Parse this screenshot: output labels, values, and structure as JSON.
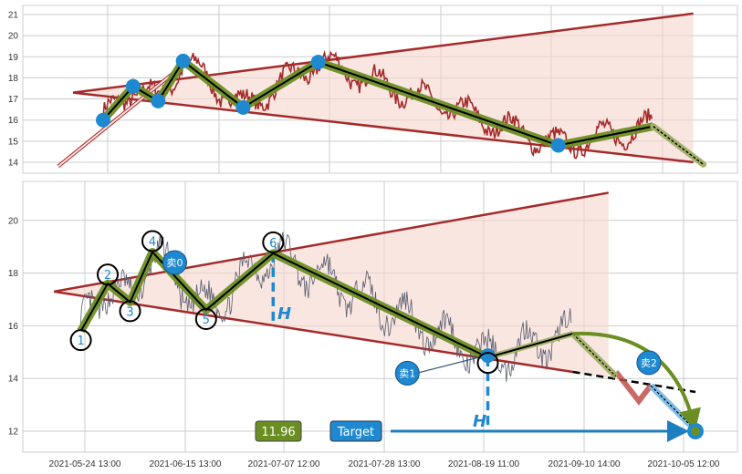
{
  "chart_data": [
    {
      "type": "line",
      "panel": "top",
      "ylim": [
        13.5,
        21.4
      ],
      "yticks": [
        "14",
        "15",
        "16",
        "17",
        "18",
        "19",
        "20",
        "21"
      ],
      "grid": true,
      "colors": {
        "price": "#a52a2a",
        "triangle": "#a52a2a",
        "fill": "#f5d5cc",
        "wave": "#6b8e23",
        "marker": "#1e88d0"
      },
      "triangle": {
        "apex": [
          "2021-05-17",
          17.3
        ],
        "upper_end": [
          "2021-09-18",
          21.05
        ],
        "lower_end": [
          "2021-09-18",
          14.0
        ]
      },
      "wave_points": [
        [
          "2021-05-23",
          16.0
        ],
        [
          "2021-05-29",
          17.6
        ],
        [
          "2021-06-03",
          16.9
        ],
        [
          "2021-06-08",
          18.8
        ],
        [
          "2021-06-20",
          16.6
        ],
        [
          "2021-07-05",
          18.75
        ],
        [
          "2021-08-22",
          14.8
        ],
        [
          "2021-09-10",
          15.7
        ],
        [
          "2021-09-20",
          13.9
        ]
      ],
      "trend_arrow": [
        [
          "2021-05-14",
          13.8
        ],
        [
          "2021-06-09",
          18.8
        ]
      ]
    },
    {
      "type": "line",
      "panel": "bottom",
      "ylim": [
        11.2,
        21.4
      ],
      "yticks": [
        "12",
        "14",
        "16",
        "18",
        "20"
      ],
      "xticks": [
        "2021-05-24 13:00",
        "2021-06-15 13:00",
        "2021-07-07 12:00",
        "2021-07-28 13:00",
        "2021-08-19 11:00",
        "2021-09-10 14:00",
        "2021-10-05 12:00"
      ],
      "grid": true,
      "colors": {
        "price": "#555a6e",
        "triangle": "#a52a2a",
        "fill": "#f5d5cc",
        "wave": "#6b8e23",
        "marker": "#1e88d0"
      },
      "triangle": {
        "apex": [
          "2021-05-17",
          17.3
        ],
        "upper_end": [
          "2021-09-18",
          21.05
        ],
        "lower_end": [
          "2021-09-10",
          14.25
        ]
      },
      "wave_points": [
        [
          "2021-05-23",
          15.8
        ],
        [
          "2021-05-29",
          17.6
        ],
        [
          "2021-06-03",
          16.9
        ],
        [
          "2021-06-08",
          18.8
        ],
        [
          "2021-06-20",
          16.6
        ],
        [
          "2021-07-05",
          18.75
        ],
        [
          "2021-08-22",
          14.8
        ],
        [
          "2021-09-10",
          15.7
        ]
      ],
      "wave_labels": [
        "1",
        "2",
        "3",
        "4",
        "5",
        "6"
      ],
      "signals": [
        {
          "label": "卖0",
          "at": [
            "2021-06-13",
            18.4
          ]
        },
        {
          "label": "卖1",
          "at": [
            "2021-08-04",
            14.2
          ]
        },
        {
          "label": "卖2",
          "at": [
            "2021-09-27",
            14.6
          ]
        }
      ],
      "height_label": "H",
      "target_label": "Target",
      "target_value": "11.96"
    }
  ]
}
